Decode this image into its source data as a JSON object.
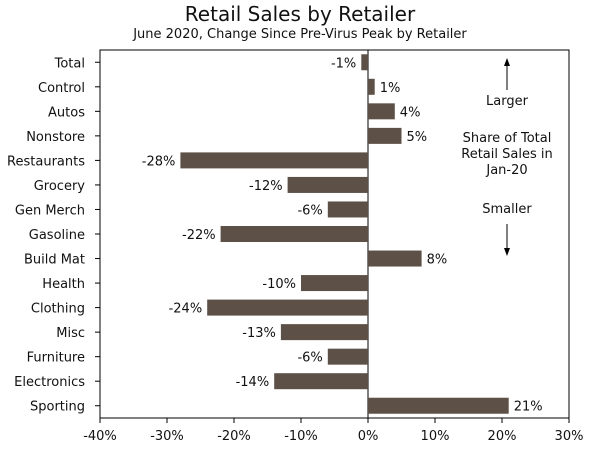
{
  "chart_data": {
    "type": "bar",
    "orientation": "horizontal",
    "title": "Retail Sales by Retailer",
    "subtitle": "June 2020, Change Since Pre-Virus Peak by Retailer",
    "categories": [
      "Total",
      "Control",
      "Autos",
      "Nonstore",
      "Restaurants",
      "Grocery",
      "Gen Merch",
      "Gasoline",
      "Build Mat",
      "Health",
      "Clothing",
      "Misc",
      "Furniture",
      "Electronics",
      "Sporting"
    ],
    "values": [
      -1,
      1,
      4,
      5,
      -28,
      -12,
      -6,
      -22,
      8,
      -10,
      -24,
      -13,
      -6,
      -14,
      21
    ],
    "data_labels": [
      "-1%",
      "1%",
      "4%",
      "5%",
      "-28%",
      "-12%",
      "-6%",
      "-22%",
      "8%",
      "-10%",
      "-24%",
      "-13%",
      "-6%",
      "-14%",
      "21%"
    ],
    "xlim": [
      -40,
      30
    ],
    "xticks": [
      -40,
      -30,
      -20,
      -10,
      0,
      10,
      20,
      30
    ],
    "xtick_labels": [
      "-40%",
      "-30%",
      "-20%",
      "-10%",
      "0%",
      "10%",
      "20%",
      "30%"
    ],
    "bar_color": "#5c5047",
    "grid": false,
    "annotations": {
      "top": "Larger",
      "middle": [
        "Share of Total",
        "Retail Sales in",
        "Jan-20"
      ],
      "bottom": "Smaller"
    }
  }
}
